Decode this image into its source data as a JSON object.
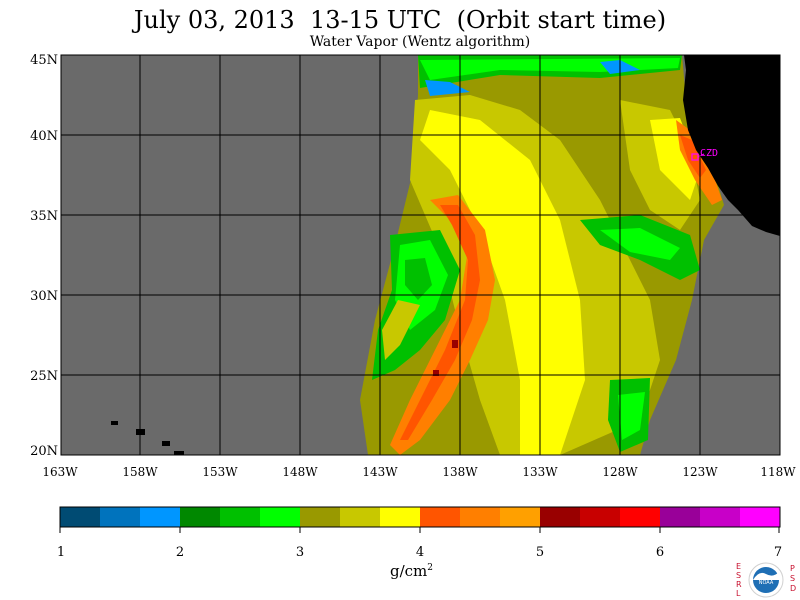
{
  "header": {
    "title": "July 03, 2013  13-15 UTC  (Orbit start time)",
    "subtitle": "Water Vapor (Wentz algorithm)"
  },
  "map": {
    "lat_labels": [
      "45N",
      "40N",
      "35N",
      "30N",
      "25N",
      "20N"
    ],
    "lon_labels": [
      "163W",
      "158W",
      "153W",
      "148W",
      "143W",
      "138W",
      "133W",
      "128W",
      "123W",
      "118W"
    ],
    "station_label": "CZD",
    "colors": {
      "no_data": "#6a6a6a",
      "land": "#000000",
      "station": "#ff00ff"
    }
  },
  "colorbar": {
    "colors": [
      "#004b73",
      "#0073bd",
      "#0096ff",
      "#008800",
      "#00c000",
      "#00ff00",
      "#999900",
      "#c8c800",
      "#ffff00",
      "#ff5500",
      "#ff7f00",
      "#ffa000",
      "#990000",
      "#c80000",
      "#ff0000",
      "#990099",
      "#c800c8",
      "#ff00ff"
    ],
    "tick_labels": [
      "1",
      "2",
      "3",
      "4",
      "5",
      "6",
      "7"
    ],
    "unit_base": "g/cm",
    "unit_exp": "2"
  },
  "logo": {
    "left_letters": [
      "E",
      "S",
      "R",
      "L"
    ],
    "right_letters": [
      "P",
      "S",
      "D"
    ],
    "center_text": "NOAA"
  }
}
